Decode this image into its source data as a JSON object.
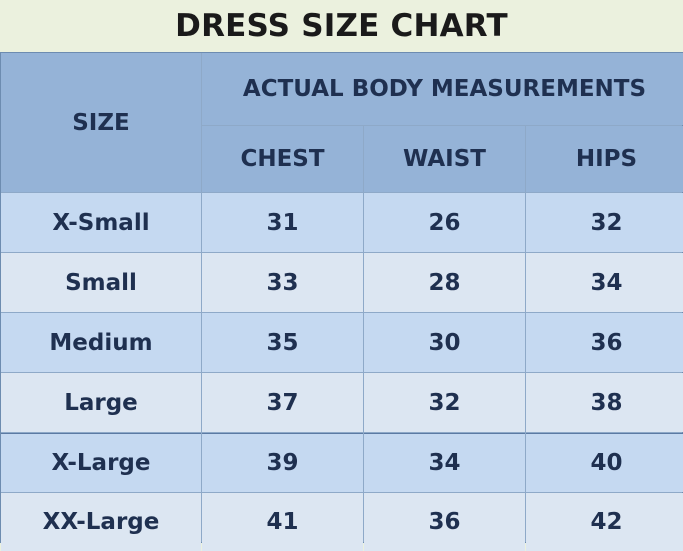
{
  "title": "DRESS SIZE CHART",
  "headers": {
    "size": "SIZE",
    "group": "ACTUAL BODY MEASUREMENTS",
    "chest": "CHEST",
    "waist": "WAIST",
    "hips": "HIPS"
  },
  "rows": [
    {
      "size": "X-Small",
      "chest": "31",
      "waist": "26",
      "hips": "32"
    },
    {
      "size": "Small",
      "chest": "33",
      "waist": "28",
      "hips": "34"
    },
    {
      "size": "Medium",
      "chest": "35",
      "waist": "30",
      "hips": "36"
    },
    {
      "size": "Large",
      "chest": "37",
      "waist": "32",
      "hips": "38"
    },
    {
      "size": "X-Large",
      "chest": "39",
      "waist": "34",
      "hips": "40"
    },
    {
      "size": "XX-Large",
      "chest": "41",
      "waist": "36",
      "hips": "42"
    }
  ],
  "colors": {
    "header_bg": "#95b3d7",
    "row_bg": "#c5d9f1",
    "title_bg": "#ebf1de",
    "text": "#1f3050"
  }
}
